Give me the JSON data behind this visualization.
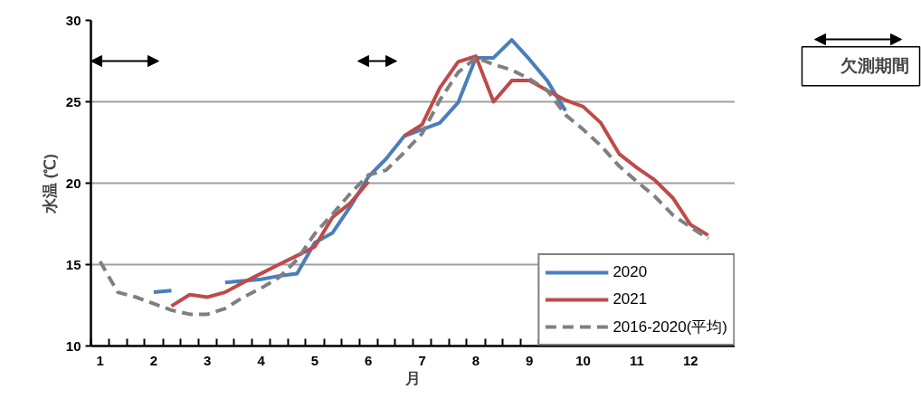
{
  "chart_data": {
    "type": "line",
    "xlabel": "月",
    "ylabel": "水温 (℃)",
    "x": [
      1,
      1.33,
      1.67,
      2,
      2.33,
      2.67,
      3,
      3.33,
      3.67,
      4,
      4.33,
      4.67,
      5,
      5.33,
      5.67,
      6,
      6.33,
      6.67,
      7,
      7.33,
      7.67,
      8,
      8.33,
      8.67,
      9,
      9.33,
      9.67,
      10,
      10.33,
      10.67,
      11,
      11.33,
      11.67,
      12,
      12.33
    ],
    "series": [
      {
        "name": "2020",
        "color": "#4a7ebb",
        "values": [
          null,
          null,
          null,
          13.3,
          13.4,
          null,
          null,
          13.9,
          14.0,
          14.1,
          14.3,
          14.45,
          16.35,
          16.95,
          18.6,
          20.4,
          21.5,
          22.9,
          23.3,
          23.7,
          24.95,
          27.7,
          27.7,
          28.8,
          27.6,
          26.3,
          24.45,
          null,
          null,
          null,
          null,
          null,
          null,
          null,
          null
        ]
      },
      {
        "name": "2021",
        "color": "#be4b48",
        "values": [
          null,
          null,
          null,
          null,
          12.45,
          13.15,
          13.0,
          13.3,
          13.9,
          14.45,
          15.0,
          15.55,
          16.1,
          17.9,
          18.8,
          20.1,
          null,
          22.9,
          23.6,
          25.85,
          27.45,
          27.8,
          25.0,
          26.3,
          26.3,
          25.7,
          25.1,
          24.7,
          23.7,
          21.8,
          20.95,
          20.2,
          19.1,
          17.45,
          16.8
        ]
      },
      {
        "name": "2016-2020(平均)",
        "color": "#808080",
        "line_style": "dashed",
        "values": [
          15.2,
          13.3,
          13.0,
          12.6,
          12.2,
          11.95,
          11.95,
          12.3,
          13.0,
          13.55,
          14.2,
          15.3,
          16.9,
          18.1,
          19.4,
          20.5,
          20.8,
          21.9,
          23.05,
          25.1,
          26.8,
          27.7,
          27.3,
          26.95,
          26.4,
          25.7,
          24.2,
          23.3,
          22.3,
          21.05,
          20.1,
          19.2,
          18.05,
          17.3,
          16.6
        ]
      }
    ],
    "xlim": [
      0.83,
      12.83
    ],
    "xticks": [
      1,
      2,
      3,
      4,
      5,
      6,
      7,
      8,
      9,
      10,
      11,
      12,
      {
        "value": 0.83,
        "label": null
      },
      {
        "value": 1.17,
        "label": null
      },
      {
        "value": 1.5,
        "label": null
      },
      {
        "value": 1.83,
        "label": null
      },
      {
        "value": 2.17,
        "label": null
      },
      {
        "value": 2.5,
        "label": null
      },
      {
        "value": 2.83,
        "label": null
      },
      {
        "value": 3.17,
        "label": null
      },
      {
        "value": 3.5,
        "label": null
      },
      {
        "value": 3.83,
        "label": null
      },
      {
        "value": 4.17,
        "label": null
      },
      {
        "value": 4.5,
        "label": null
      },
      {
        "value": 4.83,
        "label": null
      },
      {
        "value": 5.17,
        "label": null
      },
      {
        "value": 5.5,
        "label": null
      },
      {
        "value": 5.83,
        "label": null
      },
      {
        "value": 6.17,
        "label": null
      },
      {
        "value": 6.5,
        "label": null
      },
      {
        "value": 6.83,
        "label": null
      },
      {
        "value": 7.17,
        "label": null
      },
      {
        "value": 7.5,
        "label": null
      },
      {
        "value": 7.83,
        "label": null
      },
      {
        "value": 8.17,
        "label": null
      },
      {
        "value": 8.5,
        "label": null
      },
      {
        "value": 8.83,
        "label": null
      },
      {
        "value": 9.17,
        "label": null
      },
      {
        "value": 9.5,
        "label": null
      },
      {
        "value": 9.83,
        "label": null
      },
      {
        "value": 10.17,
        "label": null
      },
      {
        "value": 10.5,
        "label": null
      },
      {
        "value": 10.83,
        "label": null
      },
      {
        "value": 11.17,
        "label": null
      },
      {
        "value": 11.5,
        "label": null
      },
      {
        "value": 11.83,
        "label": null
      },
      {
        "value": 12.17,
        "label": null
      },
      {
        "value": 12.5,
        "label": null
      },
      {
        "value": 12.83,
        "label": null
      }
    ],
    "ylim": [
      10,
      30
    ],
    "yticks": [
      10,
      15,
      20,
      25,
      30
    ],
    "grid": "y",
    "legend": "bottom right",
    "line_style": "solid",
    "marker": "none",
    "annotations": [
      "欠測期間"
    ]
  }
}
